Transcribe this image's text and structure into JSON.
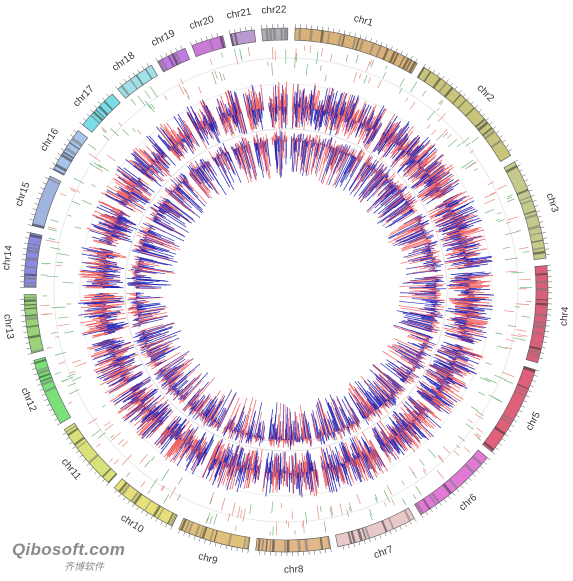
{
  "chromosomes": [
    {
      "label": "chr1",
      "color": "#d9b27a",
      "size": 249
    },
    {
      "label": "chr2",
      "color": "#c8c47a",
      "size": 243
    },
    {
      "label": "chr3",
      "color": "#c5c98c",
      "size": 198
    },
    {
      "label": "chr4",
      "color": "#d8607a",
      "size": 191
    },
    {
      "label": "chr5",
      "color": "#e0607a",
      "size": 181
    },
    {
      "label": "chr6",
      "color": "#e07ad6",
      "size": 171
    },
    {
      "label": "chr7",
      "color": "#e8c9c9",
      "size": 159
    },
    {
      "label": "chr8",
      "color": "#e0b88a",
      "size": 146
    },
    {
      "label": "chr9",
      "color": "#e0c07a",
      "size": 141
    },
    {
      "label": "chr10",
      "color": "#e5e07a",
      "size": 135
    },
    {
      "label": "chr11",
      "color": "#d9e27a",
      "size": 135
    },
    {
      "label": "chr12",
      "color": "#7ae07a",
      "size": 133
    },
    {
      "label": "chr13",
      "color": "#9ad27a",
      "size": 115
    },
    {
      "label": "chr14",
      "color": "#8a8ae0",
      "size": 107
    },
    {
      "label": "chr15",
      "color": "#a0b4e0",
      "size": 102
    },
    {
      "label": "chr16",
      "color": "#a8c4ea",
      "size": 90
    },
    {
      "label": "chr17",
      "color": "#7adce6",
      "size": 83
    },
    {
      "label": "chr18",
      "color": "#a0e0e6",
      "size": 80
    },
    {
      "label": "chr19",
      "color": "#c07ae0",
      "size": 59
    },
    {
      "label": "chr20",
      "color": "#c87ad6",
      "size": 63
    },
    {
      "label": "chr21",
      "color": "#b89ad0",
      "size": 48
    },
    {
      "label": "chr22",
      "color": "#b0b0b8",
      "size": 51
    }
  ],
  "colors": {
    "gain": "#f06060",
    "loss": "#2a2ab8",
    "link_red": "#e07a6a",
    "link_green": "#5aa860"
  },
  "watermark": {
    "main": "Qibosoft.com",
    "sub": "齐博软件"
  }
}
